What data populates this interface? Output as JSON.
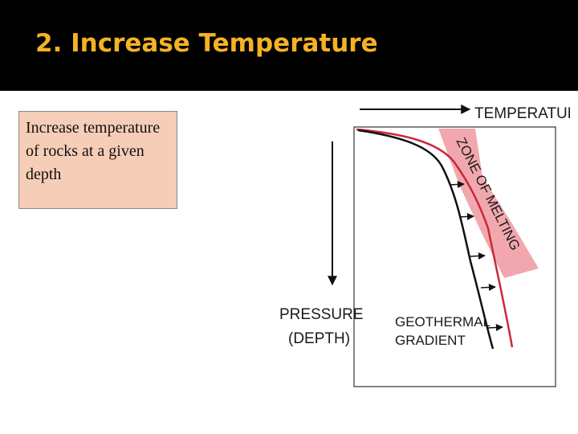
{
  "slide": {
    "title": "2. Increase Temperature",
    "body_text": "Increase temperature of rocks at a given depth"
  },
  "diagram": {
    "temperature_label": "TEMPERATURE",
    "pressure_label_line1": "PRESSURE",
    "pressure_label_line2": "(DEPTH)",
    "geothermal_line1": "GEOTHERMAL",
    "geothermal_line2": "GRADIENT",
    "zone_label": "ZONE OF MELTING",
    "colors": {
      "zone_fill": "#f2a7ae",
      "red_curve": "#c8293a",
      "black_curve": "#111111",
      "title": "#f4b224",
      "textbox": "#f6cdb7"
    }
  }
}
